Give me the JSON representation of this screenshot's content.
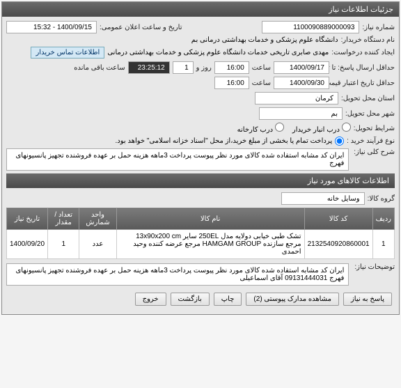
{
  "panel_title": "جزئیات اطلاعات نیاز",
  "need_number": {
    "label": "شماره نیاز:",
    "value": "1100090889000093"
  },
  "announce": {
    "label": "تاریخ و ساعت اعلان عمومی:",
    "value": "1400/09/15 - 15:32"
  },
  "buyer_org": {
    "label": "نام دستگاه خریدار:",
    "value": "دانشگاه علوم پزشکی و خدمات بهداشتی  درمانی بم"
  },
  "requester": {
    "label": "ایجاد کننده درخواست:",
    "value": "مهدی صابری تاریخی  خدمات دانشگاه علوم پزشکی و خدمات بهداشتی  درمانی"
  },
  "contact_link": "اطلاعات تماس خریدار",
  "deadline": {
    "label": "حداقل ارسال پاسخ: تا تاریخ:",
    "date": "1400/09/17",
    "time_label": "ساعت",
    "time": "16:00",
    "days_label": "روز و",
    "days": "1",
    "remain_label": "ساعت باقی مانده",
    "remain": "23:25:12"
  },
  "price_validity": {
    "label": "حداقل تاریخ اعتبار قیمت: تا تاریخ:",
    "date": "1400/09/30",
    "time_label": "ساعت",
    "time": "16:00"
  },
  "province": {
    "label": "استان محل تحویل:",
    "value": "کرمان"
  },
  "city": {
    "label": "شهر محل تحویل:",
    "value": "بم"
  },
  "delivery_cond": {
    "label": "شرایط تحویل:",
    "options": [
      "درب انبار خریدار",
      "درب کارخانه"
    ]
  },
  "purchase_type": {
    "label": "نوع فرآیند خرید :",
    "note": "پرداخت تمام یا بخشی از مبلغ خرید،از محل \"اسناد خزانه اسلامی\" خواهد بود."
  },
  "main_desc": {
    "label": "شرح کلی نیاز:",
    "value": "ایران کد مشابه استفاده شده کالای مورد نظر پیوست پرداخت 3ماهه هزینه حمل بر عهده فروشنده تجهیز پانسیونهای فهرج"
  },
  "items_title": "اطلاعات کالاهای مورد نیاز",
  "group": {
    "label": "گروه کالا:",
    "value": "وسایل خانه"
  },
  "table": {
    "headers": [
      "ردیف",
      "کد کالا",
      "نام کالا",
      "واحد شمارش",
      "تعداد / مقدار",
      "تاریخ نیاز"
    ],
    "rows": [
      [
        "1",
        "2132540920860001",
        "تشک طبی خیابی دولایه مدل 250EL سایر 13x90x200 cm مرجع سازنده HAMGAM GROUP مرجع عرضه کننده وحید احمدی",
        "عدد",
        "1",
        "1400/09/20"
      ]
    ]
  },
  "notes": {
    "label": "توضیحات نیاز:",
    "value": "ایران کد مشابه استفاده شده کالای مورد نظر پیوست پرداخت 3ماهه هزینه حمل بر عهده فروشنده تجهیز پانسیونهای فهرج 09131444031 آقای اسماعیلی"
  },
  "buttons": [
    "پاسخ به نیاز",
    "مشاهده مدارک پیوستی (2)",
    "چاپ",
    "بازگشت",
    "خروج"
  ]
}
